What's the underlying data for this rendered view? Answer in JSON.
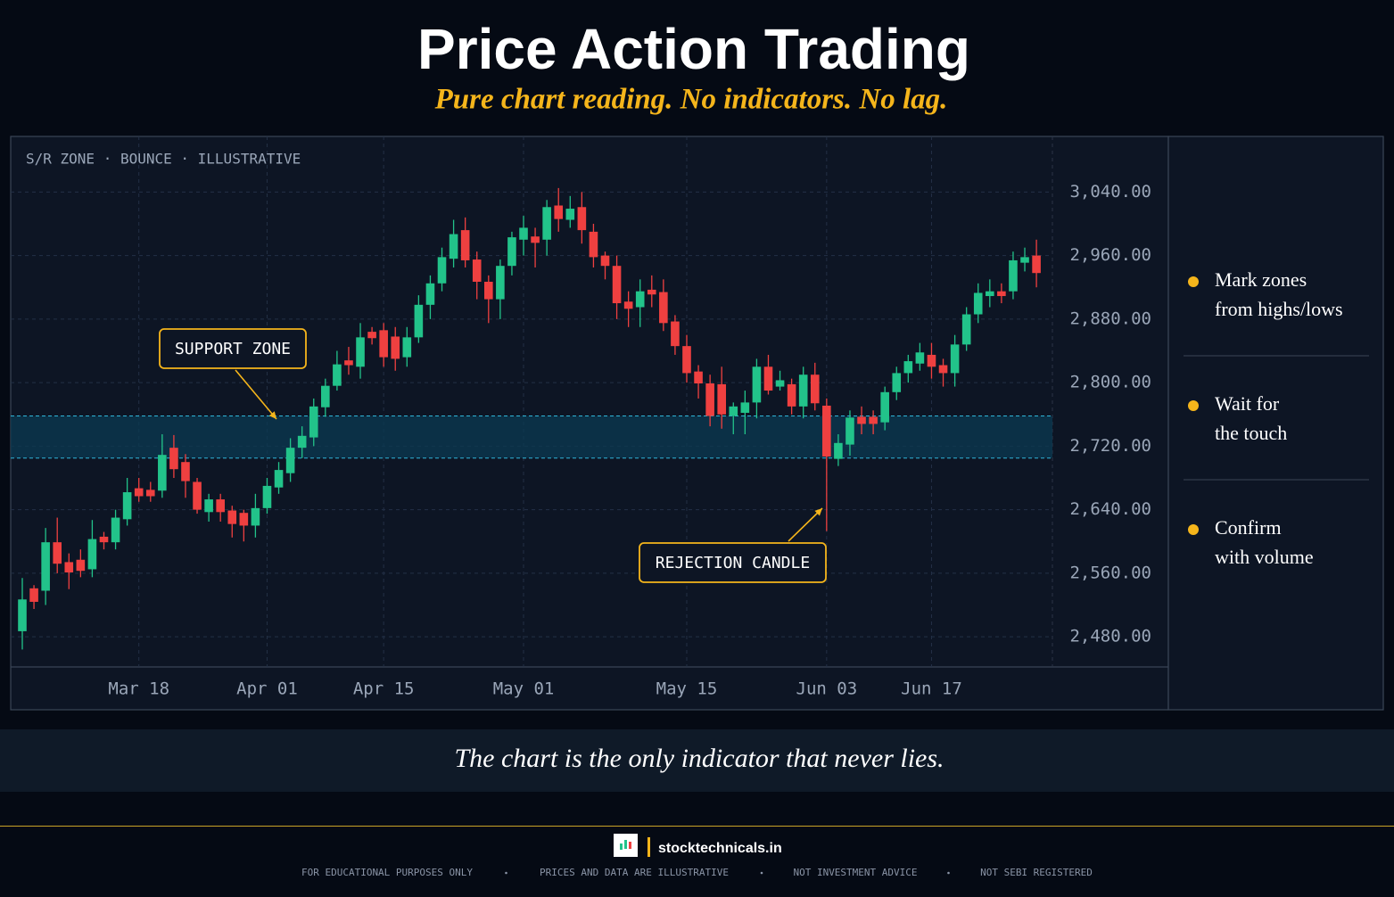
{
  "header": {
    "title": "Price Action Trading",
    "subtitle": "Pure chart reading. No indicators. No lag."
  },
  "chart_data": {
    "type": "candlestick",
    "label": "S/R ZONE · BOUNCE · ILLUSTRATIVE",
    "categories": [
      null,
      null,
      null,
      null,
      null,
      null,
      null,
      null,
      null,
      null,
      "Mar 18",
      null,
      null,
      null,
      null,
      null,
      null,
      null,
      null,
      null,
      null,
      "Apr 01",
      null,
      null,
      null,
      null,
      null,
      null,
      null,
      null,
      null,
      "Apr 15",
      null,
      null,
      null,
      null,
      null,
      null,
      null,
      null,
      null,
      null,
      null,
      "May 01",
      null,
      null,
      null,
      null,
      null,
      null,
      null,
      null,
      null,
      null,
      null,
      null,
      null,
      "May 15",
      null,
      null,
      null,
      null,
      null,
      null,
      null,
      null,
      null,
      null,
      null,
      "Jun 03",
      null,
      null,
      null,
      null,
      null,
      null,
      null,
      null,
      "Jun 17",
      null,
      null,
      null,
      null,
      null,
      null,
      null,
      null,
      null
    ],
    "open": [
      2487,
      2541,
      2538,
      2599,
      2574,
      2577,
      2565,
      2606,
      2599,
      2628,
      2667,
      2665,
      2664,
      2718,
      2700,
      2675,
      2637,
      2653,
      2639,
      2636,
      2620,
      2642,
      2668,
      2686,
      2718,
      2731,
      2769,
      2796,
      2828,
      2820,
      2864,
      2866,
      2858,
      2832,
      2857,
      2898,
      2925,
      2956,
      2992,
      2955,
      2927,
      2905,
      2947,
      2980,
      2984,
      2980,
      3023,
      3005,
      3021,
      2990,
      2960,
      2947,
      2902,
      2895,
      2917,
      2914,
      2877,
      2846,
      2814,
      2799,
      2798,
      2758,
      2762,
      2775,
      2820,
      2795,
      2798,
      2770,
      2810,
      2771,
      2704,
      2722,
      2757,
      2757,
      2750,
      2788,
      2812,
      2824,
      2835,
      2822,
      2812,
      2848,
      2886,
      2909,
      2915,
      2915,
      2951,
      2960
    ],
    "high": [
      2554,
      2545,
      2617,
      2630,
      2585,
      2590,
      2627,
      2612,
      2640,
      2680,
      2680,
      2675,
      2735,
      2734,
      2710,
      2680,
      2660,
      2660,
      2645,
      2640,
      2660,
      2680,
      2700,
      2730,
      2745,
      2780,
      2805,
      2840,
      2845,
      2875,
      2870,
      2875,
      2870,
      2870,
      2910,
      2935,
      2970,
      3005,
      3008,
      2965,
      2935,
      2955,
      2990,
      3010,
      2995,
      3030,
      3045,
      3035,
      3040,
      3000,
      2965,
      2960,
      2915,
      2930,
      2935,
      2930,
      2885,
      2860,
      2822,
      2810,
      2820,
      2775,
      2790,
      2830,
      2835,
      2815,
      2805,
      2820,
      2825,
      2780,
      2735,
      2765,
      2770,
      2765,
      2795,
      2820,
      2835,
      2850,
      2850,
      2830,
      2860,
      2895,
      2925,
      2930,
      2925,
      2965,
      2970,
      2980
    ],
    "low": [
      2464,
      2515,
      2520,
      2560,
      2540,
      2555,
      2555,
      2590,
      2590,
      2620,
      2650,
      2650,
      2655,
      2680,
      2655,
      2635,
      2625,
      2625,
      2605,
      2600,
      2605,
      2635,
      2660,
      2675,
      2705,
      2720,
      2757,
      2790,
      2810,
      2805,
      2848,
      2820,
      2815,
      2820,
      2850,
      2880,
      2915,
      2945,
      2945,
      2905,
      2875,
      2880,
      2935,
      2960,
      2945,
      2960,
      2990,
      2995,
      2975,
      2945,
      2930,
      2880,
      2870,
      2870,
      2895,
      2865,
      2835,
      2800,
      2780,
      2745,
      2742,
      2735,
      2735,
      2755,
      2785,
      2790,
      2760,
      2755,
      2765,
      2613,
      2695,
      2708,
      2735,
      2735,
      2740,
      2778,
      2800,
      2815,
      2805,
      2795,
      2795,
      2840,
      2875,
      2895,
      2900,
      2905,
      2940,
      2920
    ],
    "close": [
      2527,
      2524,
      2599,
      2572,
      2561,
      2563,
      2603,
      2599,
      2630,
      2662,
      2657,
      2657,
      2709,
      2691,
      2676,
      2640,
      2653,
      2637,
      2622,
      2620,
      2642,
      2670,
      2690,
      2718,
      2733,
      2770,
      2796,
      2823,
      2822,
      2857,
      2856,
      2832,
      2830,
      2857,
      2898,
      2925,
      2958,
      2987,
      2954,
      2927,
      2905,
      2947,
      2983,
      2995,
      2976,
      3021,
      3006,
      3019,
      2992,
      2958,
      2947,
      2900,
      2893,
      2915,
      2911,
      2875,
      2846,
      2812,
      2799,
      2758,
      2760,
      2770,
      2775,
      2820,
      2790,
      2803,
      2770,
      2810,
      2774,
      2707,
      2724,
      2756,
      2748,
      2748,
      2788,
      2812,
      2827,
      2838,
      2820,
      2812,
      2848,
      2886,
      2913,
      2915,
      2909,
      2954,
      2958,
      2938
    ],
    "ylim": [
      2442,
      3110
    ],
    "yticks": [
      {
        "value": 2480,
        "label": "2,480.00"
      },
      {
        "value": 2560,
        "label": "2,560.00"
      },
      {
        "value": 2640,
        "label": "2,640.00"
      },
      {
        "value": 2720,
        "label": "2,720.00"
      },
      {
        "value": 2800,
        "label": "2,800.00"
      },
      {
        "value": 2880,
        "label": "2,880.00"
      },
      {
        "value": 2960,
        "label": "2,960.00"
      },
      {
        "value": 3040,
        "label": "3,040.00"
      }
    ],
    "up_color": "#22c38a",
    "down_color": "#ef4040",
    "grid": true,
    "zone": [
      2705,
      2758
    ],
    "annotations": [
      "SUPPORT ZONE",
      "REJECTION CANDLE"
    ]
  },
  "tips": [
    [
      "Mark zones",
      "from highs/lows"
    ],
    [
      "Wait for",
      "the touch"
    ],
    [
      "Confirm",
      "with volume"
    ]
  ],
  "quote": "The chart is the only indicator that never lies.",
  "footer": {
    "site": "stocktechnicals.in",
    "disclaimers": [
      "FOR EDUCATIONAL PURPOSES ONLY",
      "PRICES AND DATA ARE ILLUSTRATIVE",
      "NOT INVESTMENT ADVICE",
      "NOT SEBI REGISTERED"
    ]
  }
}
